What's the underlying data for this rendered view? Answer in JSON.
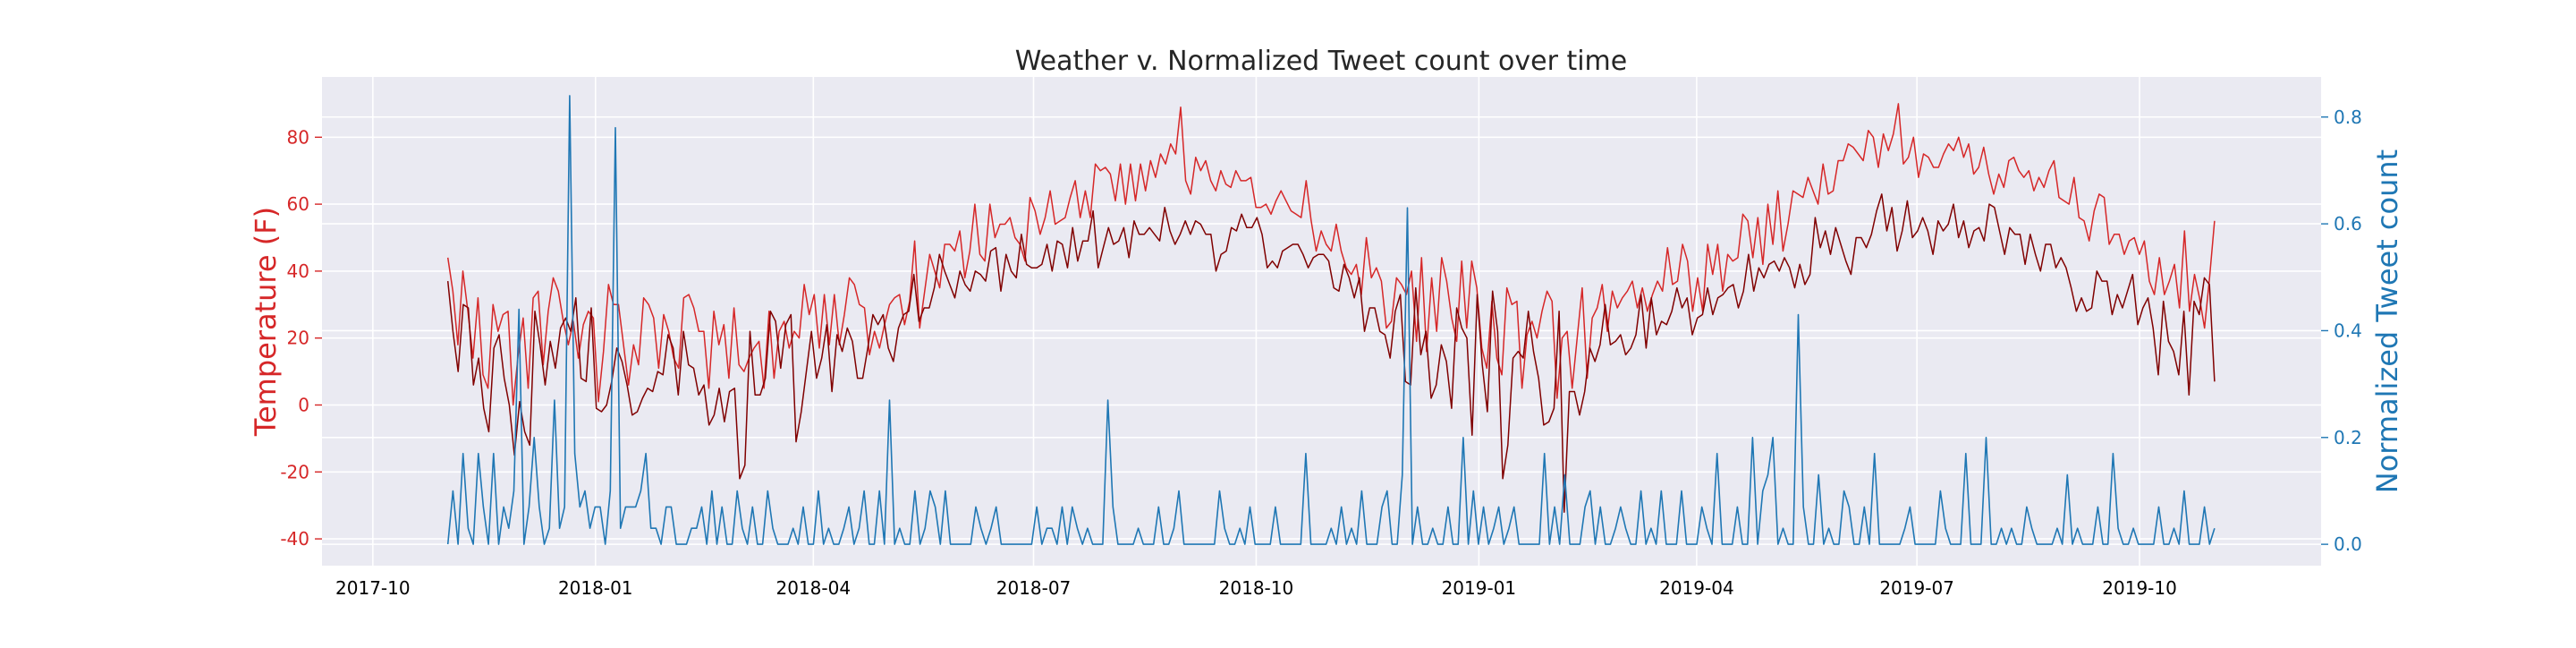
{
  "chart_data": {
    "type": "line",
    "title": "Weather v. Normalized Tweet count over time",
    "ylabel_left": "Temperature (F)",
    "ylabel_right": "Normalized Tweet count",
    "xlabel": "",
    "xlim": [
      "2017-09-10",
      "2019-12-15"
    ],
    "ylim_left": [
      -48,
      98
    ],
    "ylim_right": [
      -0.04,
      0.875
    ],
    "grid": true,
    "x_ticks": [
      "2017-10",
      "2018-01",
      "2018-04",
      "2018-07",
      "2018-10",
      "2019-01",
      "2019-04",
      "2019-07",
      "2019-10"
    ],
    "y_ticks_left": [
      -40,
      -20,
      0,
      20,
      40,
      60,
      80
    ],
    "y_ticks_right": [
      0.0,
      0.2,
      0.4,
      0.6,
      0.8
    ],
    "date_range": [
      "2017-11-01",
      "2019-11-01"
    ],
    "series": [
      {
        "axis": "left",
        "color": "#d62728",
        "values": [
          44,
          34,
          18,
          40,
          28,
          14,
          32,
          9,
          5,
          30,
          22,
          27,
          28,
          0,
          15,
          26,
          5,
          32,
          34,
          12,
          28,
          38,
          34,
          25,
          18,
          25,
          14,
          24,
          28,
          26,
          1,
          16,
          36,
          30,
          30,
          18,
          6,
          18,
          12,
          32,
          30,
          26,
          11,
          27,
          22,
          14,
          11,
          32,
          33,
          29,
          22,
          22,
          5,
          28,
          18,
          24,
          8,
          29,
          12,
          10,
          14,
          17,
          19,
          5,
          28,
          8,
          22,
          25,
          17,
          22,
          20,
          36,
          27,
          33,
          17,
          33,
          18,
          33,
          18,
          27,
          38,
          36,
          30,
          29,
          15,
          22,
          17,
          24,
          30,
          32,
          33,
          24,
          31,
          49,
          23,
          34,
          45,
          40,
          35,
          48,
          48,
          46,
          52,
          38,
          46,
          60,
          45,
          43,
          60,
          50,
          54,
          54,
          56,
          50,
          48,
          43,
          62,
          58,
          51,
          56,
          64,
          54,
          55,
          56,
          62,
          67,
          56,
          64,
          56,
          72,
          70,
          71,
          69,
          61,
          72,
          60,
          72,
          61,
          72,
          64,
          73,
          68,
          75,
          72,
          78,
          75,
          89,
          67,
          63,
          74,
          70,
          73,
          67,
          64,
          70,
          66,
          65,
          70,
          67,
          67,
          68,
          59,
          59,
          60,
          57,
          61,
          64,
          61,
          58,
          57,
          56,
          67,
          55,
          46,
          52,
          48,
          46,
          54,
          46,
          41,
          39,
          42,
          33,
          50,
          38,
          41,
          37,
          23,
          25,
          38,
          36,
          33,
          40,
          19,
          44,
          16,
          38,
          22,
          44,
          37,
          26,
          19,
          43,
          23,
          43,
          35,
          17,
          11,
          31,
          14,
          9,
          35,
          30,
          31,
          5,
          21,
          25,
          20,
          28,
          34,
          31,
          2,
          20,
          22,
          5,
          20,
          35,
          8,
          26,
          29,
          36,
          22,
          34,
          29,
          32,
          34,
          37,
          29,
          35,
          28,
          33,
          37,
          34,
          47,
          36,
          37,
          48,
          43,
          28,
          38,
          28,
          48,
          39,
          48,
          34,
          45,
          43,
          44,
          57,
          55,
          44,
          56,
          42,
          60,
          48,
          64,
          46,
          54,
          64,
          63,
          62,
          68,
          64,
          60,
          72,
          63,
          64,
          73,
          73,
          78,
          77,
          75,
          73,
          82,
          80,
          71,
          81,
          76,
          81,
          90,
          72,
          74,
          80,
          68,
          75,
          74,
          71,
          71,
          75,
          78,
          76,
          80,
          74,
          78,
          69,
          71,
          77,
          69,
          63,
          69,
          65,
          73,
          74,
          70,
          68,
          70,
          64,
          68,
          65,
          70,
          73,
          62,
          61,
          60,
          68,
          56,
          55,
          49,
          58,
          63,
          62,
          48,
          51,
          51,
          45,
          49,
          50,
          45,
          49,
          37,
          33,
          44,
          33,
          37,
          42,
          29,
          52,
          28,
          39,
          32,
          23,
          38,
          55
        ]
      },
      {
        "axis": "left",
        "color": "#800000",
        "values": [
          37,
          22,
          10,
          30,
          29,
          6,
          14,
          -1,
          -8,
          17,
          21,
          8,
          0,
          -15,
          1,
          -8,
          -12,
          28,
          18,
          6,
          19,
          11,
          23,
          26,
          22,
          32,
          8,
          7,
          29,
          -1,
          -2,
          0,
          7,
          17,
          13,
          6,
          -3,
          -2,
          2,
          5,
          4,
          10,
          9,
          21,
          17,
          3,
          22,
          12,
          11,
          3,
          6,
          -6,
          -3,
          5,
          -5,
          4,
          5,
          -22,
          -18,
          22,
          3,
          3,
          8,
          28,
          25,
          11,
          24,
          27,
          -11,
          -2,
          10,
          22,
          8,
          14,
          24,
          4,
          21,
          16,
          23,
          19,
          8,
          8,
          17,
          27,
          24,
          27,
          17,
          13,
          23,
          27,
          28,
          39,
          25,
          29,
          29,
          35,
          45,
          40,
          36,
          32,
          40,
          36,
          34,
          40,
          39,
          37,
          46,
          47,
          34,
          45,
          40,
          38,
          51,
          42,
          41,
          41,
          42,
          48,
          40,
          49,
          48,
          41,
          53,
          43,
          49,
          49,
          58,
          41,
          47,
          53,
          48,
          49,
          53,
          44,
          55,
          51,
          51,
          53,
          51,
          49,
          59,
          52,
          48,
          51,
          55,
          51,
          55,
          54,
          51,
          51,
          40,
          45,
          46,
          53,
          52,
          57,
          53,
          53,
          56,
          51,
          41,
          43,
          41,
          46,
          47,
          48,
          48,
          45,
          41,
          44,
          45,
          45,
          43,
          35,
          34,
          42,
          38,
          32,
          38,
          22,
          29,
          29,
          22,
          21,
          14,
          28,
          33,
          7,
          6,
          35,
          15,
          22,
          2,
          6,
          18,
          13,
          -1,
          29,
          23,
          20,
          -9,
          33,
          12,
          -2,
          34,
          22,
          -22,
          -12,
          14,
          16,
          14,
          28,
          16,
          8,
          -6,
          -5,
          -1,
          28,
          -32,
          4,
          4,
          -3,
          4,
          17,
          13,
          18,
          30,
          18,
          19,
          21,
          15,
          17,
          21,
          33,
          17,
          32,
          21,
          25,
          24,
          28,
          35,
          29,
          32,
          21,
          26,
          27,
          35,
          27,
          32,
          33,
          35,
          36,
          29,
          34,
          45,
          34,
          41,
          38,
          42,
          43,
          40,
          44,
          41,
          35,
          42,
          36,
          39,
          56,
          47,
          52,
          45,
          53,
          48,
          43,
          39,
          50,
          50,
          47,
          51,
          58,
          63,
          52,
          59,
          46,
          52,
          61,
          50,
          52,
          56,
          52,
          45,
          55,
          52,
          54,
          60,
          50,
          55,
          47,
          52,
          53,
          49,
          60,
          59,
          52,
          45,
          53,
          51,
          51,
          42,
          51,
          45,
          40,
          48,
          48,
          41,
          44,
          41,
          35,
          28,
          32,
          28,
          29,
          40,
          37,
          37,
          27,
          33,
          29,
          34,
          39,
          24,
          29,
          32,
          23,
          9,
          31,
          19,
          16,
          9,
          28,
          3,
          31,
          27,
          38,
          36,
          7
        ]
      },
      {
        "axis": "right",
        "color": "#1f77b4",
        "values": [
          0.0,
          0.1,
          0.0,
          0.17,
          0.03,
          0.0,
          0.17,
          0.07,
          0.0,
          0.17,
          0.0,
          0.07,
          0.03,
          0.1,
          0.44,
          0.0,
          0.07,
          0.2,
          0.07,
          0.0,
          0.03,
          0.27,
          0.03,
          0.07,
          0.84,
          0.17,
          0.07,
          0.1,
          0.03,
          0.07,
          0.07,
          0.0,
          0.1,
          0.78,
          0.03,
          0.07,
          0.07,
          0.07,
          0.1,
          0.17,
          0.03,
          0.03,
          0.0,
          0.07,
          0.07,
          0.0,
          0.0,
          0.0,
          0.03,
          0.03,
          0.07,
          0.0,
          0.1,
          0.0,
          0.07,
          0.0,
          0.0,
          0.1,
          0.03,
          0.0,
          0.07,
          0.0,
          0.0,
          0.1,
          0.03,
          0.0,
          0.0,
          0.0,
          0.03,
          0.0,
          0.07,
          0.0,
          0.0,
          0.1,
          0.0,
          0.03,
          0.0,
          0.0,
          0.03,
          0.07,
          0.0,
          0.03,
          0.1,
          0.0,
          0.0,
          0.1,
          0.0,
          0.27,
          0.0,
          0.03,
          0.0,
          0.0,
          0.1,
          0.0,
          0.03,
          0.1,
          0.07,
          0.0,
          0.1,
          0.0,
          0.0,
          0.0,
          0.0,
          0.0,
          0.07,
          0.03,
          0.0,
          0.03,
          0.07,
          0.0,
          0.0,
          0.0,
          0.0,
          0.0,
          0.0,
          0.0,
          0.07,
          0.0,
          0.03,
          0.03,
          0.0,
          0.07,
          0.0,
          0.07,
          0.03,
          0.0,
          0.03,
          0.0,
          0.0,
          0.0,
          0.27,
          0.07,
          0.0,
          0.0,
          0.0,
          0.0,
          0.03,
          0.0,
          0.0,
          0.0,
          0.07,
          0.0,
          0.0,
          0.03,
          0.1,
          0.0,
          0.0,
          0.0,
          0.0,
          0.0,
          0.0,
          0.0,
          0.1,
          0.03,
          0.0,
          0.0,
          0.03,
          0.0,
          0.07,
          0.0,
          0.0,
          0.0,
          0.0,
          0.07,
          0.0,
          0.0,
          0.0,
          0.0,
          0.0,
          0.17,
          0.0,
          0.0,
          0.0,
          0.0,
          0.03,
          0.0,
          0.07,
          0.0,
          0.03,
          0.0,
          0.1,
          0.0,
          0.0,
          0.0,
          0.07,
          0.1,
          0.0,
          0.0,
          0.13,
          0.63,
          0.0,
          0.07,
          0.0,
          0.0,
          0.03,
          0.0,
          0.0,
          0.07,
          0.0,
          0.0,
          0.2,
          0.0,
          0.1,
          0.0,
          0.07,
          0.0,
          0.03,
          0.07,
          0.0,
          0.03,
          0.07,
          0.0,
          0.0,
          0.0,
          0.0,
          0.0,
          0.17,
          0.0,
          0.07,
          0.0,
          0.13,
          0.0,
          0.0,
          0.0,
          0.07,
          0.1,
          0.0,
          0.07,
          0.0,
          0.0,
          0.03,
          0.07,
          0.03,
          0.0,
          0.0,
          0.1,
          0.0,
          0.03,
          0.0,
          0.1,
          0.0,
          0.0,
          0.0,
          0.1,
          0.0,
          0.0,
          0.0,
          0.07,
          0.03,
          0.0,
          0.17,
          0.0,
          0.0,
          0.0,
          0.07,
          0.0,
          0.0,
          0.2,
          0.0,
          0.1,
          0.13,
          0.2,
          0.0,
          0.03,
          0.0,
          0.0,
          0.43,
          0.07,
          0.0,
          0.0,
          0.13,
          0.0,
          0.03,
          0.0,
          0.0,
          0.1,
          0.07,
          0.0,
          0.0,
          0.07,
          0.0,
          0.17,
          0.0,
          0.0,
          0.0,
          0.0,
          0.0,
          0.03,
          0.07,
          0.0,
          0.0,
          0.0,
          0.0,
          0.0,
          0.1,
          0.03,
          0.0,
          0.0,
          0.0,
          0.17,
          0.0,
          0.0,
          0.0,
          0.2,
          0.0,
          0.0,
          0.03,
          0.0,
          0.03,
          0.0,
          0.0,
          0.07,
          0.03,
          0.0,
          0.0,
          0.0,
          0.0,
          0.03,
          0.0,
          0.13,
          0.0,
          0.03,
          0.0,
          0.0,
          0.0,
          0.07,
          0.0,
          0.0,
          0.17,
          0.03,
          0.0,
          0.0,
          0.03,
          0.0,
          0.0,
          0.0,
          0.0,
          0.07,
          0.0,
          0.0,
          0.03,
          0.0,
          0.1,
          0.0,
          0.0,
          0.0,
          0.07,
          0.0,
          0.03
        ]
      }
    ]
  }
}
